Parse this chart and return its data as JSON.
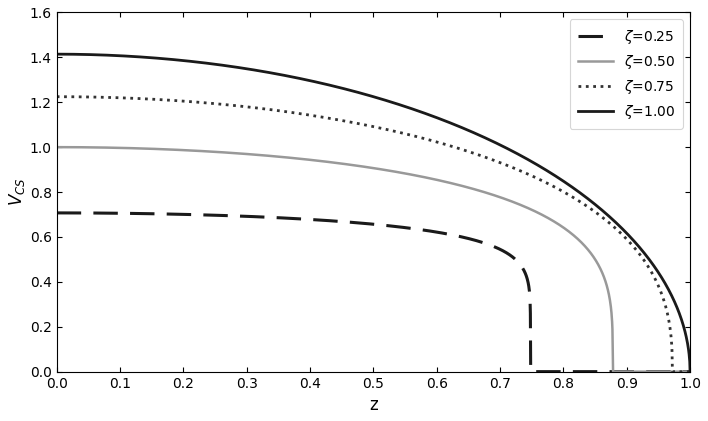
{
  "title": "",
  "xlabel": "z",
  "ylabel": "$V_{CS}$",
  "xlim": [
    0,
    1.0
  ],
  "ylim": [
    0,
    1.6
  ],
  "xticks": [
    0,
    0.1,
    0.2,
    0.3,
    0.4,
    0.5,
    0.6,
    0.7,
    0.8,
    0.9,
    1.0
  ],
  "yticks": [
    0,
    0.2,
    0.4,
    0.6,
    0.8,
    1.0,
    1.2,
    1.4,
    1.6
  ],
  "curves": [
    {
      "zeta": 0.25,
      "linestyle": "dashed",
      "color": "#1a1a1a",
      "linewidth": 2.2,
      "label": "$\\zeta$=0.25",
      "dashes": [
        8,
        4
      ]
    },
    {
      "zeta": 0.5,
      "linestyle": "solid",
      "color": "#999999",
      "linewidth": 1.8,
      "label": "$\\zeta$=0.50",
      "dashes": null
    },
    {
      "zeta": 0.75,
      "linestyle": "dotted",
      "color": "#333333",
      "linewidth": 2.0,
      "label": "$\\zeta$=0.75",
      "dashes": null
    },
    {
      "zeta": 1.0,
      "linestyle": "solid",
      "color": "#1a1a1a",
      "linewidth": 2.0,
      "label": "$\\zeta$=1.00",
      "dashes": null
    }
  ],
  "legend_loc": "upper right",
  "background_color": "#ffffff",
  "n_points": 2000
}
